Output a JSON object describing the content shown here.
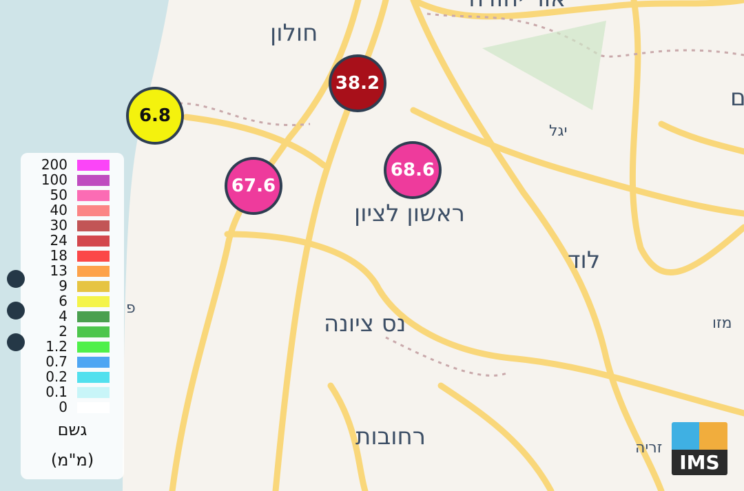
{
  "map": {
    "colors": {
      "land": "#f6f3ee",
      "sea": "#cfe4e8",
      "road": "#f9d77a",
      "border": "#c9a9ab"
    },
    "places": [
      {
        "name": "אור יהודה",
        "cls": ""
      },
      {
        "name": "חולון",
        "cls": ""
      },
      {
        "name": "יגל",
        "cls": "sm"
      },
      {
        "name": "ראשון לציון",
        "cls": ""
      },
      {
        "name": "לוד",
        "cls": ""
      },
      {
        "name": "נס ציונה",
        "cls": ""
      },
      {
        "name": "רחובות",
        "cls": ""
      },
      {
        "name": "מזו",
        "cls": "sm"
      },
      {
        "name": "זריה",
        "cls": "sm"
      },
      {
        "name": "פ",
        "cls": "sm"
      },
      {
        "name": "ם",
        "cls": ""
      }
    ]
  },
  "stations": [
    {
      "value": "38.2",
      "color": "#a8101a",
      "text": "#ffffff"
    },
    {
      "value": "6.8",
      "color": "#f4f20d",
      "text": "#111111"
    },
    {
      "value": "67.6",
      "color": "#ee3b9c",
      "text": "#ffffff"
    },
    {
      "value": "68.6",
      "color": "#ee3b9c",
      "text": "#ffffff"
    }
  ],
  "legend": {
    "title": "גשם",
    "unit": "(מ\"מ)",
    "items": [
      {
        "value": "200",
        "color": "#fb45f8"
      },
      {
        "value": "100",
        "color": "#bf4cbf"
      },
      {
        "value": "50",
        "color": "#fb6cb4"
      },
      {
        "value": "40",
        "color": "#fb8585"
      },
      {
        "value": "30",
        "color": "#c25556"
      },
      {
        "value": "24",
        "color": "#d3474d"
      },
      {
        "value": "18",
        "color": "#fb4848"
      },
      {
        "value": "13",
        "color": "#fda24a"
      },
      {
        "value": "9",
        "color": "#e6c442"
      },
      {
        "value": "6",
        "color": "#f4f44a"
      },
      {
        "value": "4",
        "color": "#4aa04f"
      },
      {
        "value": "2",
        "color": "#4dc64d"
      },
      {
        "value": "1.2",
        "color": "#4ff04a"
      },
      {
        "value": "0.7",
        "color": "#4ea6f3"
      },
      {
        "value": "0.2",
        "color": "#52e0ee"
      },
      {
        "value": "0.1",
        "color": "#c8f5f8"
      },
      {
        "value": "0",
        "color": "#ffffff"
      }
    ]
  },
  "logo": {
    "text": "IMS"
  }
}
